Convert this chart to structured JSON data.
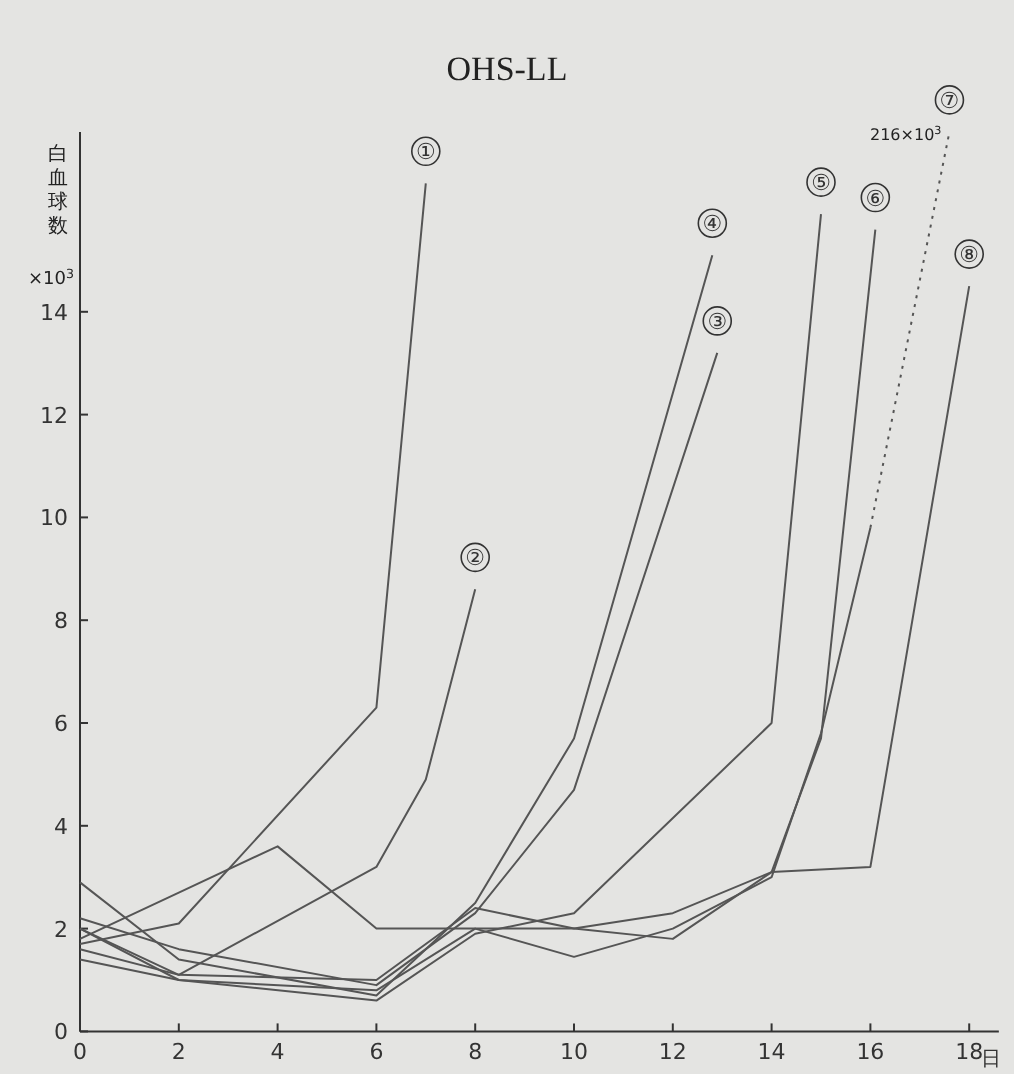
{
  "chart_data": {
    "type": "line",
    "title": "OHS-LL",
    "xlabel": "日",
    "ylabel": "白血球数",
    "xlim": [
      0,
      18.6
    ],
    "ylim": [
      0,
      17.5
    ],
    "xticks": [
      0,
      2,
      4,
      6,
      8,
      10,
      12,
      14,
      16,
      18
    ],
    "yticks": [
      0,
      2,
      4,
      6,
      8,
      10,
      12,
      14
    ],
    "grid": false,
    "marker": "none",
    "line_style": "solid",
    "annotations": [
      "×10$^{3}$",
      {
        "text": "216×10$^{3}$",
        "x": 17.6,
        "y": 17.5
      }
    ],
    "series": [
      {
        "name": "①",
        "color": "#555555",
        "x": [
          0,
          2,
          6,
          7
        ],
        "values": [
          1.7,
          2.1,
          6.3,
          16.5
        ]
      },
      {
        "name": "②",
        "color": "#555555",
        "x": [
          0,
          2,
          6,
          7,
          8
        ],
        "values": [
          2.0,
          1.1,
          3.2,
          4.9,
          8.6
        ]
      },
      {
        "name": "③",
        "color": "#555555",
        "x": [
          0,
          2,
          6,
          8,
          10,
          12.9
        ],
        "values": [
          2.2,
          1.6,
          0.9,
          2.3,
          4.7,
          13.2
        ]
      },
      {
        "name": "④",
        "color": "#555555",
        "x": [
          0,
          2,
          6,
          8,
          10,
          12.8
        ],
        "values": [
          2.9,
          1.4,
          0.7,
          2.5,
          5.7,
          15.1
        ]
      },
      {
        "name": "⑤",
        "color": "#555555",
        "x": [
          0,
          2,
          6,
          8,
          10,
          14,
          15
        ],
        "values": [
          1.4,
          1.0,
          0.6,
          1.9,
          2.3,
          6.0,
          15.9
        ]
      },
      {
        "name": "⑥",
        "color": "#555555",
        "x": [
          0,
          2,
          6,
          8,
          10,
          12,
          14,
          15,
          16.1
        ],
        "values": [
          1.6,
          1.1,
          1.0,
          2.4,
          2.0,
          2.3,
          3.1,
          5.7,
          15.6
        ]
      },
      {
        "color": "#555555",
        "x": [
          0,
          2,
          6,
          8,
          10,
          12,
          14,
          15,
          16
        ],
        "values": [
          2.0,
          1.0,
          0.8,
          2.0,
          1.45,
          2.0,
          3.0,
          5.8,
          9.8
        ]
      },
      {
        "name": "⑦",
        "color": "#555555",
        "line_style": "dotted",
        "x": [
          16,
          17.6
        ],
        "values": [
          9.8,
          17.5
        ]
      },
      {
        "name": "⑧",
        "color": "#555555",
        "x": [
          0,
          2,
          4,
          6,
          8,
          10,
          12,
          14,
          16,
          18
        ],
        "values": [
          1.8,
          2.7,
          3.6,
          2.0,
          2.0,
          2.0,
          1.8,
          3.1,
          3.2,
          14.5
        ]
      }
    ]
  }
}
